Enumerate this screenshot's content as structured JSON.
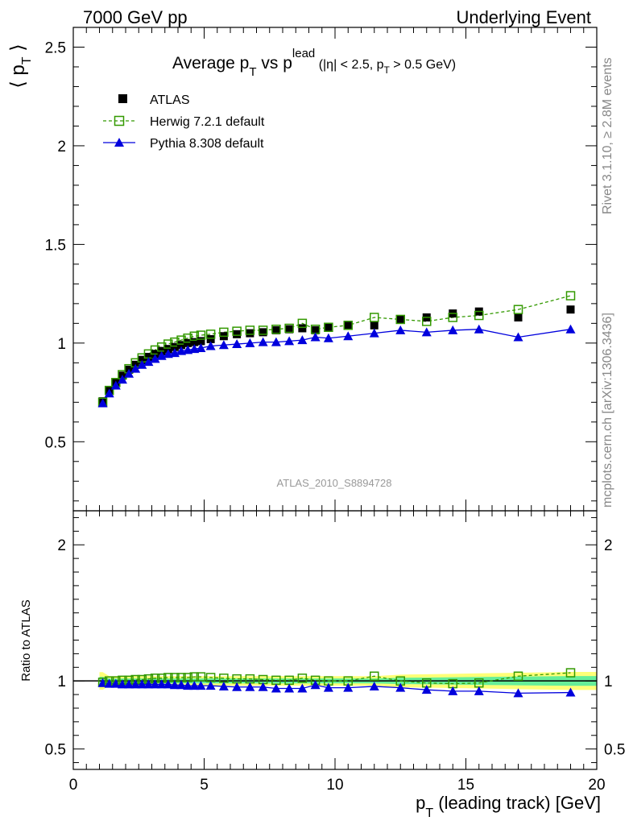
{
  "header": {
    "left": "7000 GeV pp",
    "right": "Underlying Event"
  },
  "side_text": {
    "rivet": "Rivet 3.1.10, ≥ 2.8M events",
    "site": "mcplots.cern.ch [arXiv:1306.3436]"
  },
  "watermark": "ATLAS_2010_S8894728",
  "colors": {
    "atlas": "#000000",
    "herwig": "#339900",
    "pythia": "#0000dd",
    "band_inner": "#66ee99",
    "band_outer": "#ffff77",
    "side_text": "#888888"
  },
  "chart_data": [
    {
      "type": "scatter",
      "title": "Average p_T vs p_T^lead (|η| < 2.5, p_T > 0.5 GeV)",
      "title_parts": {
        "main_a": "Average p",
        "sub_T": "T",
        "main_b": " vs p",
        "sup_lead": "lead",
        "paren_a": " (|η| < 2.5, p",
        "paren_b": " > 0.5 GeV)"
      },
      "ylabel": "⟨ p_T ⟩",
      "ylabel_parts": {
        "open": "⟨ p",
        "sub": "T",
        "close": " ⟩"
      },
      "xlim": [
        0,
        20
      ],
      "ylim": [
        0.15,
        2.6
      ],
      "yticks": [
        0.5,
        1,
        1.5,
        2,
        2.5
      ],
      "legend_position": "top-left",
      "x": [
        1.125,
        1.375,
        1.625,
        1.875,
        2.125,
        2.375,
        2.625,
        2.875,
        3.125,
        3.375,
        3.625,
        3.875,
        4.125,
        4.375,
        4.625,
        4.875,
        5.25,
        5.75,
        6.25,
        6.75,
        7.25,
        7.75,
        8.25,
        8.75,
        9.25,
        9.75,
        10.5,
        11.5,
        12.5,
        13.5,
        14.5,
        15.5,
        17.0,
        19.0
      ],
      "series": [
        {
          "name": "ATLAS",
          "marker": "filled-square",
          "values": [
            0.705,
            0.76,
            0.8,
            0.835,
            0.865,
            0.89,
            0.915,
            0.93,
            0.945,
            0.96,
            0.97,
            0.98,
            0.99,
            1.0,
            1.005,
            1.01,
            1.02,
            1.035,
            1.045,
            1.05,
            1.055,
            1.065,
            1.07,
            1.075,
            1.065,
            1.08,
            1.09,
            1.09,
            1.12,
            1.13,
            1.15,
            1.16,
            1.13,
            1.17
          ]
        },
        {
          "name": "Herwig 7.2.1 default",
          "marker": "open-square",
          "line": "dashed",
          "values": [
            0.7,
            0.76,
            0.8,
            0.84,
            0.87,
            0.9,
            0.925,
            0.945,
            0.965,
            0.98,
            0.995,
            1.005,
            1.015,
            1.025,
            1.035,
            1.04,
            1.045,
            1.055,
            1.06,
            1.065,
            1.065,
            1.07,
            1.075,
            1.1,
            1.07,
            1.08,
            1.09,
            1.13,
            1.12,
            1.11,
            1.13,
            1.14,
            1.17,
            1.24
          ]
        },
        {
          "name": "Pythia 8.308 default",
          "marker": "filled-triangle",
          "line": "solid",
          "values": [
            0.695,
            0.745,
            0.785,
            0.815,
            0.845,
            0.87,
            0.89,
            0.905,
            0.92,
            0.935,
            0.945,
            0.95,
            0.96,
            0.965,
            0.97,
            0.975,
            0.985,
            0.99,
            0.995,
            1.0,
            1.005,
            1.005,
            1.01,
            1.015,
            1.03,
            1.025,
            1.035,
            1.05,
            1.065,
            1.055,
            1.065,
            1.07,
            1.03,
            1.07
          ]
        }
      ]
    },
    {
      "type": "scatter",
      "title": "",
      "ylabel": "Ratio to ATLAS",
      "xlabel": "p_T (leading track) [GeV]",
      "xlabel_parts": {
        "p": "p",
        "sub": "T",
        "rest": " (leading track) [GeV]"
      },
      "xlim": [
        0,
        20
      ],
      "ylim": [
        0.35,
        2.25
      ],
      "yticks": [
        0.5,
        1,
        2
      ],
      "xticks": [
        0,
        5,
        10,
        15,
        20
      ],
      "reference_line": 1,
      "series": [
        {
          "name": "Herwig 7.2.1 default",
          "values": [
            0.99,
            1.0,
            1.0,
            1.005,
            1.005,
            1.01,
            1.01,
            1.015,
            1.02,
            1.02,
            1.025,
            1.025,
            1.025,
            1.025,
            1.03,
            1.03,
            1.025,
            1.02,
            1.015,
            1.015,
            1.01,
            1.005,
            1.005,
            1.02,
            1.005,
            1.0,
            1.0,
            1.035,
            1.0,
            0.985,
            0.98,
            0.985,
            1.035,
            1.06
          ]
        },
        {
          "name": "Pythia 8.308 default",
          "values": [
            0.985,
            0.98,
            0.98,
            0.975,
            0.975,
            0.975,
            0.975,
            0.975,
            0.975,
            0.975,
            0.975,
            0.97,
            0.97,
            0.965,
            0.965,
            0.965,
            0.965,
            0.96,
            0.955,
            0.955,
            0.955,
            0.945,
            0.945,
            0.945,
            0.97,
            0.95,
            0.95,
            0.96,
            0.95,
            0.935,
            0.925,
            0.925,
            0.91,
            0.915
          ]
        }
      ]
    }
  ]
}
